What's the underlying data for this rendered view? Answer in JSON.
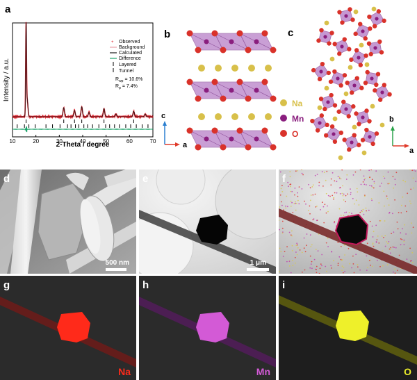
{
  "panels": {
    "a": "a",
    "b": "b",
    "c": "c",
    "d": "d",
    "e": "e",
    "f": "f",
    "g": "g",
    "h": "h",
    "i": "i"
  },
  "legend": {
    "observed": "Observed",
    "background": "Background",
    "calculated": "Calculated",
    "difference": "Difference",
    "layered": "Layered",
    "tunnel": "Tunnel",
    "rwp": "R",
    "rwp_sub": "wp",
    "rwp_val": "= 10.6%",
    "rp": "R",
    "rp_sub": "p",
    "rp_val": "= 7.4%"
  },
  "chart_data": {
    "type": "line",
    "xlabel": "2-Theta / degree",
    "ylabel": "Intensity / a.u.",
    "xlim": [
      10,
      70
    ],
    "x_ticks": [
      "10",
      "20",
      "30",
      "40",
      "50",
      "60",
      "70"
    ],
    "series": [
      {
        "name": "Observed",
        "color": "#e0202a"
      },
      {
        "name": "Background",
        "color": "#e9a0a8"
      },
      {
        "name": "Calculated",
        "color": "#1a1a1a"
      },
      {
        "name": "Difference",
        "color": "#1aa36a"
      }
    ],
    "peaks": [
      {
        "x": 15.8,
        "y": 1.0
      },
      {
        "x": 16.3,
        "y": 0.18
      },
      {
        "x": 31.9,
        "y": 0.1
      },
      {
        "x": 36.5,
        "y": 0.07
      },
      {
        "x": 39.6,
        "y": 0.11
      },
      {
        "x": 42.7,
        "y": 0.05
      },
      {
        "x": 49.1,
        "y": 0.09
      },
      {
        "x": 54.2,
        "y": 0.03
      },
      {
        "x": 61.8,
        "y": 0.06
      },
      {
        "x": 66.7,
        "y": 0.03
      }
    ],
    "layered_ticks": [
      15.8,
      31.9,
      36.5,
      39.6,
      49.1,
      61.8
    ],
    "tunnel_ticks": [
      12.0,
      15.1,
      17.0,
      19.7,
      24.3,
      27.1,
      30.3,
      33.5,
      35.0,
      36.9,
      38.3,
      40.5,
      42.1,
      44.2,
      46.9,
      49.8,
      51.5,
      53.6,
      55.7,
      58.4,
      60.5,
      62.9,
      65.4,
      67.9
    ]
  },
  "structure_legend": {
    "na": "Na",
    "mn": "Mn",
    "o": "O",
    "colors": {
      "na": "#d8c04a",
      "mn": "#8a1e7e",
      "o": "#d9322a",
      "polyhedra": "#b77fc7"
    }
  },
  "axes": {
    "b": {
      "up": "c",
      "right": "a"
    },
    "c": {
      "up": "b",
      "right": "a"
    }
  },
  "scale_bars": {
    "d": "500 nm",
    "e": "1 μm"
  },
  "map_labels": {
    "g": "Na",
    "h": "Mn",
    "i": "O"
  },
  "map_colors": {
    "g": "#ff2a1a",
    "h": "#d35ad6",
    "i": "#eef02a"
  }
}
